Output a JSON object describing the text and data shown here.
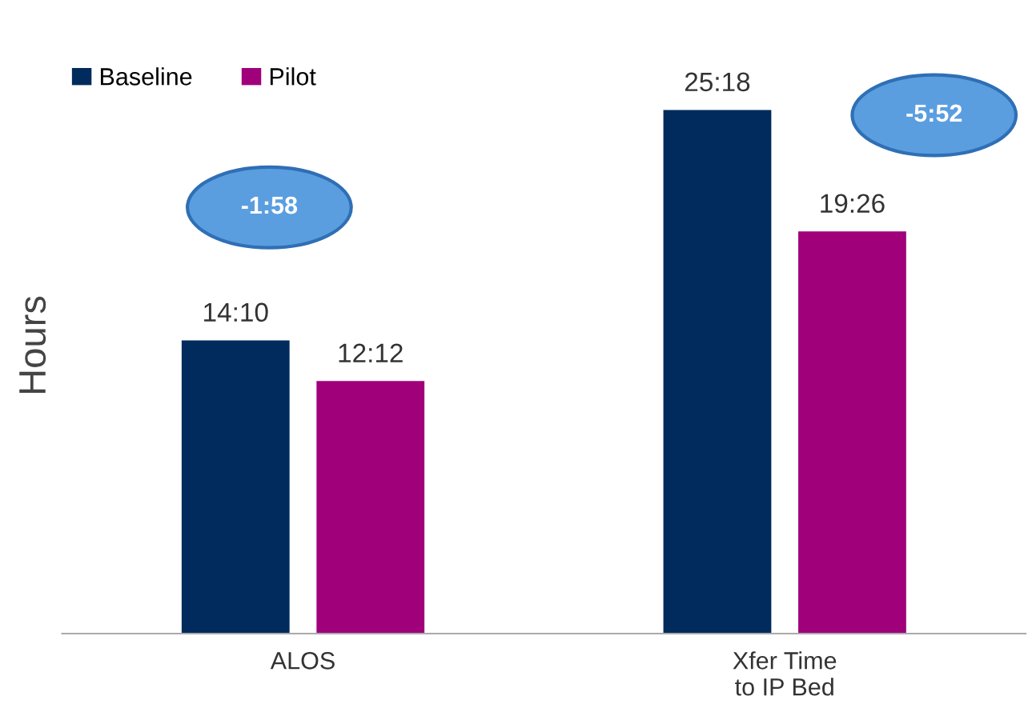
{
  "chart_data": {
    "type": "bar",
    "ylabel": "Hours",
    "categories": [
      "ALOS",
      "Xfer Time\nto IP Bed"
    ],
    "series": [
      {
        "name": "Baseline",
        "color": "#002b5c",
        "values": [
          14.17,
          25.3
        ],
        "value_labels": [
          "14:10",
          "25:18"
        ]
      },
      {
        "name": "Pilot",
        "color": "#a0007a",
        "values": [
          12.2,
          19.43
        ],
        "value_labels": [
          "12:12",
          "19:26"
        ]
      }
    ],
    "legend": "top left",
    "grid": false,
    "annotations": [
      "-1:58",
      "-5:52"
    ]
  }
}
